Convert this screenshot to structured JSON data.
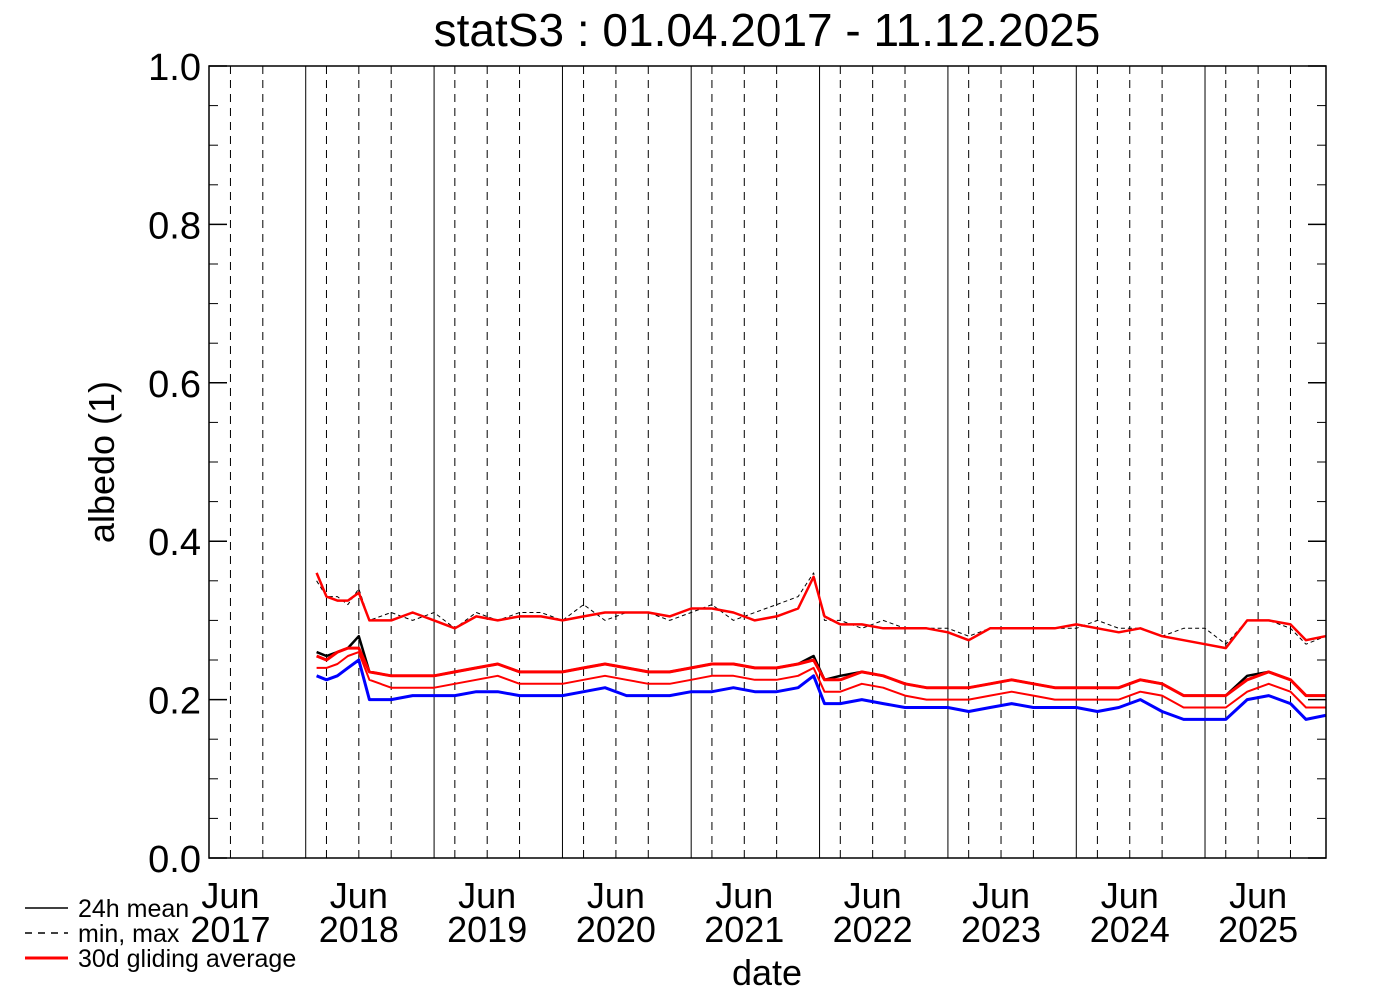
{
  "chart_data": {
    "type": "line",
    "title": "statS3 : 01.04.2017 - 11.12.2025",
    "xlabel": "date",
    "ylabel": "albedo (1)",
    "ylim": [
      0.0,
      1.0
    ],
    "xlim": [
      "2017-04-01",
      "2025-12-11"
    ],
    "y_ticks": [
      "0.0",
      "0.2",
      "0.4",
      "0.6",
      "0.8",
      "1.0"
    ],
    "x_ticks": [
      {
        "date": "2017-06-01",
        "month": "Jun",
        "year": "2017"
      },
      {
        "date": "2018-06-01",
        "month": "Jun",
        "year": "2018"
      },
      {
        "date": "2019-06-01",
        "month": "Jun",
        "year": "2019"
      },
      {
        "date": "2020-06-01",
        "month": "Jun",
        "year": "2020"
      },
      {
        "date": "2021-06-01",
        "month": "Jun",
        "year": "2021"
      },
      {
        "date": "2022-06-01",
        "month": "Jun",
        "year": "2022"
      },
      {
        "date": "2023-06-01",
        "month": "Jun",
        "year": "2023"
      },
      {
        "date": "2024-06-01",
        "month": "Jun",
        "year": "2024"
      },
      {
        "date": "2025-06-01",
        "month": "Jun",
        "year": "2025"
      }
    ],
    "grid": "vertical lines: solid at each Jan 1, dashed at Mar, Jun, Sep",
    "legend_position": "bottom-left",
    "legend": [
      {
        "label": "24h mean",
        "style": "solid",
        "color": "#000000"
      },
      {
        "label": "min, max",
        "style": "dashed",
        "color": "#000000"
      },
      {
        "label": "30d gliding average",
        "style": "solid",
        "color": "#ff0000"
      }
    ],
    "colors": {
      "mean": "#000000",
      "max": "#000000",
      "min": "#0000ff",
      "gliding": "#ff0000"
    },
    "series": [
      {
        "name": "min, max",
        "role": "max",
        "x": [
          "2018-02-01",
          "2018-03-01",
          "2018-04-01",
          "2018-05-01",
          "2018-06-01",
          "2018-07-01",
          "2018-09-01",
          "2018-11-01",
          "2019-01-01",
          "2019-03-01",
          "2019-05-01",
          "2019-07-01",
          "2019-09-01",
          "2019-11-01",
          "2020-01-01",
          "2020-03-01",
          "2020-05-01",
          "2020-07-01",
          "2020-09-01",
          "2020-11-01",
          "2021-01-01",
          "2021-03-01",
          "2021-05-01",
          "2021-07-01",
          "2021-09-01",
          "2021-11-01",
          "2021-12-15",
          "2022-01-15",
          "2022-03-01",
          "2022-05-01",
          "2022-07-01",
          "2022-09-01",
          "2022-11-01",
          "2023-01-01",
          "2023-03-01",
          "2023-05-01",
          "2023-07-01",
          "2023-09-01",
          "2023-11-01",
          "2024-01-01",
          "2024-03-01",
          "2024-05-01",
          "2024-07-01",
          "2024-09-01",
          "2024-11-01",
          "2025-01-01",
          "2025-03-01",
          "2025-05-01",
          "2025-07-01",
          "2025-09-01",
          "2025-10-15",
          "2025-12-10"
        ],
        "y": [
          0.35,
          0.33,
          0.33,
          0.32,
          0.34,
          0.3,
          0.31,
          0.3,
          0.31,
          0.29,
          0.31,
          0.3,
          0.31,
          0.31,
          0.3,
          0.32,
          0.3,
          0.31,
          0.31,
          0.3,
          0.31,
          0.32,
          0.3,
          0.31,
          0.32,
          0.33,
          0.36,
          0.3,
          0.3,
          0.29,
          0.3,
          0.29,
          0.29,
          0.29,
          0.28,
          0.29,
          0.29,
          0.29,
          0.29,
          0.29,
          0.3,
          0.29,
          0.29,
          0.28,
          0.29,
          0.29,
          0.27,
          0.3,
          0.3,
          0.29,
          0.27,
          0.28
        ]
      },
      {
        "name": "24h mean",
        "role": "mean",
        "x": [
          "2018-02-01",
          "2018-03-01",
          "2018-04-01",
          "2018-05-01",
          "2018-06-01",
          "2018-07-01",
          "2018-09-01",
          "2018-11-01",
          "2019-01-01",
          "2019-03-01",
          "2019-05-01",
          "2019-07-01",
          "2019-09-01",
          "2019-11-01",
          "2020-01-01",
          "2020-03-01",
          "2020-05-01",
          "2020-07-01",
          "2020-09-01",
          "2020-11-01",
          "2021-01-01",
          "2021-03-01",
          "2021-05-01",
          "2021-07-01",
          "2021-09-01",
          "2021-11-01",
          "2021-12-15",
          "2022-01-15",
          "2022-03-01",
          "2022-05-01",
          "2022-07-01",
          "2022-09-01",
          "2022-11-01",
          "2023-01-01",
          "2023-03-01",
          "2023-05-01",
          "2023-07-01",
          "2023-09-01",
          "2023-11-01",
          "2024-01-01",
          "2024-03-01",
          "2024-05-01",
          "2024-07-01",
          "2024-09-01",
          "2024-11-01",
          "2025-01-01",
          "2025-03-01",
          "2025-05-01",
          "2025-07-01",
          "2025-09-01",
          "2025-10-15",
          "2025-12-10"
        ],
        "y": [
          0.26,
          0.255,
          0.26,
          0.265,
          0.28,
          0.235,
          0.23,
          0.23,
          0.23,
          0.235,
          0.24,
          0.245,
          0.235,
          0.235,
          0.235,
          0.24,
          0.245,
          0.24,
          0.235,
          0.235,
          0.24,
          0.245,
          0.245,
          0.24,
          0.24,
          0.245,
          0.255,
          0.225,
          0.23,
          0.235,
          0.23,
          0.22,
          0.215,
          0.215,
          0.215,
          0.22,
          0.225,
          0.22,
          0.215,
          0.215,
          0.215,
          0.215,
          0.225,
          0.22,
          0.205,
          0.205,
          0.205,
          0.23,
          0.235,
          0.225,
          0.205,
          0.205
        ]
      },
      {
        "name": "min, max",
        "role": "min",
        "x": [
          "2018-02-01",
          "2018-03-01",
          "2018-04-01",
          "2018-05-01",
          "2018-06-01",
          "2018-07-01",
          "2018-09-01",
          "2018-11-01",
          "2019-01-01",
          "2019-03-01",
          "2019-05-01",
          "2019-07-01",
          "2019-09-01",
          "2019-11-01",
          "2020-01-01",
          "2020-03-01",
          "2020-05-01",
          "2020-07-01",
          "2020-09-01",
          "2020-11-01",
          "2021-01-01",
          "2021-03-01",
          "2021-05-01",
          "2021-07-01",
          "2021-09-01",
          "2021-11-01",
          "2021-12-15",
          "2022-01-15",
          "2022-03-01",
          "2022-05-01",
          "2022-07-01",
          "2022-09-01",
          "2022-11-01",
          "2023-01-01",
          "2023-03-01",
          "2023-05-01",
          "2023-07-01",
          "2023-09-01",
          "2023-11-01",
          "2024-01-01",
          "2024-03-01",
          "2024-05-01",
          "2024-07-01",
          "2024-09-01",
          "2024-11-01",
          "2025-01-01",
          "2025-03-01",
          "2025-05-01",
          "2025-07-01",
          "2025-09-01",
          "2025-10-15",
          "2025-12-10"
        ],
        "y": [
          0.23,
          0.225,
          0.23,
          0.24,
          0.25,
          0.2,
          0.2,
          0.205,
          0.205,
          0.205,
          0.21,
          0.21,
          0.205,
          0.205,
          0.205,
          0.21,
          0.215,
          0.205,
          0.205,
          0.205,
          0.21,
          0.21,
          0.215,
          0.21,
          0.21,
          0.215,
          0.23,
          0.195,
          0.195,
          0.2,
          0.195,
          0.19,
          0.19,
          0.19,
          0.185,
          0.19,
          0.195,
          0.19,
          0.19,
          0.19,
          0.185,
          0.19,
          0.2,
          0.185,
          0.175,
          0.175,
          0.175,
          0.2,
          0.205,
          0.195,
          0.175,
          0.18
        ]
      },
      {
        "name": "30d gliding average",
        "role": "gliding-max",
        "x": [
          "2018-02-01",
          "2018-03-01",
          "2018-04-01",
          "2018-05-01",
          "2018-06-01",
          "2018-07-01",
          "2018-09-01",
          "2018-11-01",
          "2019-01-01",
          "2019-03-01",
          "2019-05-01",
          "2019-07-01",
          "2019-09-01",
          "2019-11-01",
          "2020-01-01",
          "2020-03-01",
          "2020-05-01",
          "2020-07-01",
          "2020-09-01",
          "2020-11-01",
          "2021-01-01",
          "2021-03-01",
          "2021-05-01",
          "2021-07-01",
          "2021-09-01",
          "2021-11-01",
          "2021-12-15",
          "2022-01-15",
          "2022-03-01",
          "2022-05-01",
          "2022-07-01",
          "2022-09-01",
          "2022-11-01",
          "2023-01-01",
          "2023-03-01",
          "2023-05-01",
          "2023-07-01",
          "2023-09-01",
          "2023-11-01",
          "2024-01-01",
          "2024-03-01",
          "2024-05-01",
          "2024-07-01",
          "2024-09-01",
          "2024-11-01",
          "2025-01-01",
          "2025-03-01",
          "2025-05-01",
          "2025-07-01",
          "2025-09-01",
          "2025-10-15",
          "2025-12-10"
        ],
        "y": [
          0.36,
          0.33,
          0.325,
          0.325,
          0.335,
          0.3,
          0.3,
          0.31,
          0.3,
          0.29,
          0.305,
          0.3,
          0.305,
          0.305,
          0.3,
          0.305,
          0.31,
          0.31,
          0.31,
          0.305,
          0.315,
          0.315,
          0.31,
          0.3,
          0.305,
          0.315,
          0.355,
          0.305,
          0.295,
          0.295,
          0.29,
          0.29,
          0.29,
          0.285,
          0.275,
          0.29,
          0.29,
          0.29,
          0.29,
          0.295,
          0.29,
          0.285,
          0.29,
          0.28,
          0.275,
          0.27,
          0.265,
          0.3,
          0.3,
          0.295,
          0.275,
          0.28
        ]
      },
      {
        "name": "30d gliding average",
        "role": "gliding-mean",
        "x": [
          "2018-02-01",
          "2018-03-01",
          "2018-04-01",
          "2018-05-01",
          "2018-06-01",
          "2018-07-01",
          "2018-09-01",
          "2018-11-01",
          "2019-01-01",
          "2019-03-01",
          "2019-05-01",
          "2019-07-01",
          "2019-09-01",
          "2019-11-01",
          "2020-01-01",
          "2020-03-01",
          "2020-05-01",
          "2020-07-01",
          "2020-09-01",
          "2020-11-01",
          "2021-01-01",
          "2021-03-01",
          "2021-05-01",
          "2021-07-01",
          "2021-09-01",
          "2021-11-01",
          "2021-12-15",
          "2022-01-15",
          "2022-03-01",
          "2022-05-01",
          "2022-07-01",
          "2022-09-01",
          "2022-11-01",
          "2023-01-01",
          "2023-03-01",
          "2023-05-01",
          "2023-07-01",
          "2023-09-01",
          "2023-11-01",
          "2024-01-01",
          "2024-03-01",
          "2024-05-01",
          "2024-07-01",
          "2024-09-01",
          "2024-11-01",
          "2025-01-01",
          "2025-03-01",
          "2025-05-01",
          "2025-07-01",
          "2025-09-01",
          "2025-10-15",
          "2025-12-10"
        ],
        "y": [
          0.255,
          0.25,
          0.26,
          0.265,
          0.265,
          0.235,
          0.23,
          0.23,
          0.23,
          0.235,
          0.24,
          0.245,
          0.235,
          0.235,
          0.235,
          0.24,
          0.245,
          0.24,
          0.235,
          0.235,
          0.24,
          0.245,
          0.245,
          0.24,
          0.24,
          0.245,
          0.25,
          0.225,
          0.225,
          0.235,
          0.23,
          0.22,
          0.215,
          0.215,
          0.215,
          0.22,
          0.225,
          0.22,
          0.215,
          0.215,
          0.215,
          0.215,
          0.225,
          0.22,
          0.205,
          0.205,
          0.205,
          0.225,
          0.235,
          0.225,
          0.205,
          0.205
        ]
      },
      {
        "name": "30d gliding average",
        "role": "gliding-min",
        "x": [
          "2018-02-01",
          "2018-03-01",
          "2018-04-01",
          "2018-05-01",
          "2018-06-01",
          "2018-07-01",
          "2018-09-01",
          "2018-11-01",
          "2019-01-01",
          "2019-03-01",
          "2019-05-01",
          "2019-07-01",
          "2019-09-01",
          "2019-11-01",
          "2020-01-01",
          "2020-03-01",
          "2020-05-01",
          "2020-07-01",
          "2020-09-01",
          "2020-11-01",
          "2021-01-01",
          "2021-03-01",
          "2021-05-01",
          "2021-07-01",
          "2021-09-01",
          "2021-11-01",
          "2021-12-15",
          "2022-01-15",
          "2022-03-01",
          "2022-05-01",
          "2022-07-01",
          "2022-09-01",
          "2022-11-01",
          "2023-01-01",
          "2023-03-01",
          "2023-05-01",
          "2023-07-01",
          "2023-09-01",
          "2023-11-01",
          "2024-01-01",
          "2024-03-01",
          "2024-05-01",
          "2024-07-01",
          "2024-09-01",
          "2024-11-01",
          "2025-01-01",
          "2025-03-01",
          "2025-05-01",
          "2025-07-01",
          "2025-09-01",
          "2025-10-15",
          "2025-12-10"
        ],
        "y": [
          0.24,
          0.24,
          0.245,
          0.255,
          0.26,
          0.225,
          0.215,
          0.215,
          0.215,
          0.22,
          0.225,
          0.23,
          0.22,
          0.22,
          0.22,
          0.225,
          0.23,
          0.225,
          0.22,
          0.22,
          0.225,
          0.23,
          0.23,
          0.225,
          0.225,
          0.23,
          0.24,
          0.21,
          0.21,
          0.22,
          0.215,
          0.205,
          0.2,
          0.2,
          0.2,
          0.205,
          0.21,
          0.205,
          0.2,
          0.2,
          0.2,
          0.2,
          0.21,
          0.205,
          0.19,
          0.19,
          0.19,
          0.21,
          0.22,
          0.21,
          0.19,
          0.19
        ]
      }
    ]
  }
}
